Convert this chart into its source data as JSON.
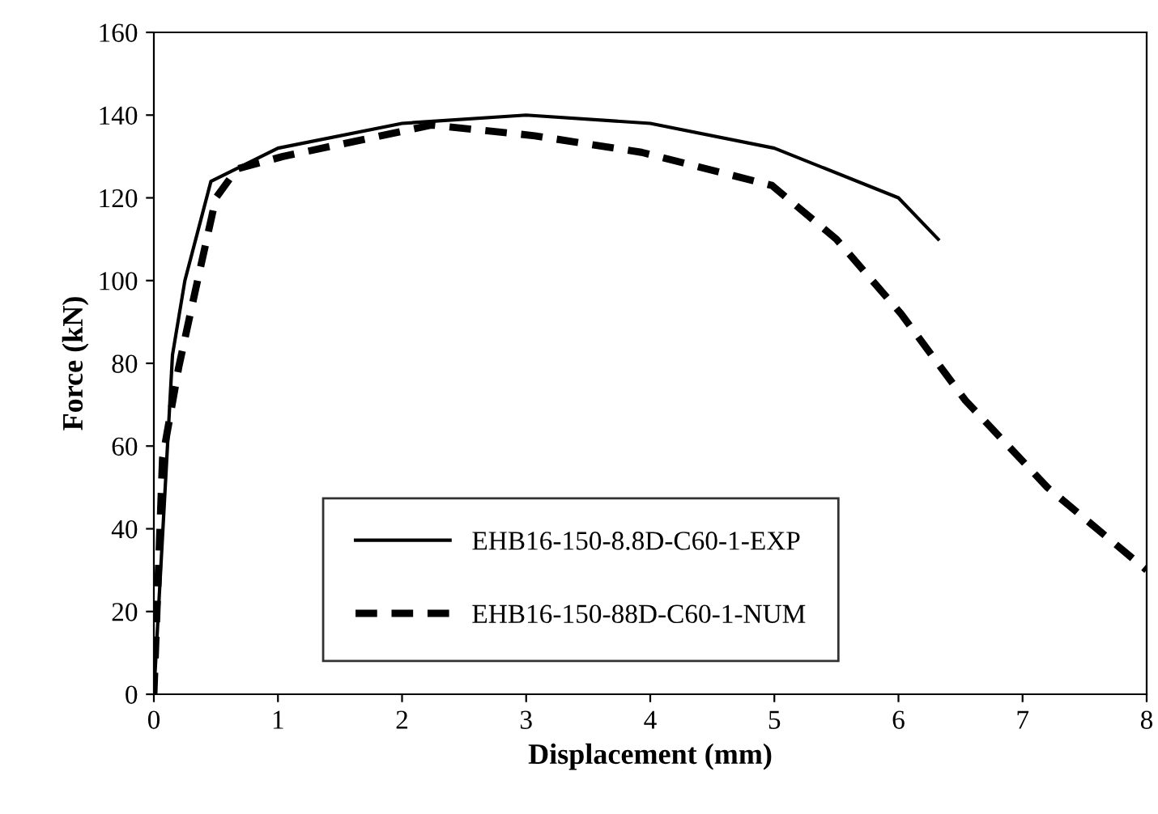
{
  "chart_data": {
    "type": "line",
    "xlabel": "Displacement (mm)",
    "ylabel": "Force (kN)",
    "xlim": [
      0,
      8
    ],
    "ylim": [
      0,
      160
    ],
    "xticks": [
      0,
      1,
      2,
      3,
      4,
      5,
      6,
      7,
      8
    ],
    "yticks": [
      0,
      20,
      40,
      60,
      80,
      100,
      120,
      140,
      160
    ],
    "grid": false,
    "legend": "bottom",
    "marker": "none",
    "series": [
      {
        "name": "EHB16-150-8.8D-C60-1-EXP",
        "color": "#000000",
        "line_style": "solid",
        "x": [
          0,
          0.15,
          0.25,
          0.46,
          1.0,
          2.0,
          3.0,
          4.0,
          5.0,
          6.0,
          6.32
        ],
        "values": [
          0,
          82,
          100,
          124,
          132,
          138,
          140,
          138,
          132,
          120,
          110
        ]
      },
      {
        "name": "EHB16-150-88D-C60-1-NUM",
        "color": "#000000",
        "line_style": "dashed",
        "x": [
          0,
          0.07,
          0.2,
          0.33,
          0.5,
          0.67,
          1.04,
          2.24,
          3.07,
          3.93,
          4.98,
          5.5,
          6.02,
          6.54,
          7.2,
          8.0
        ],
        "values": [
          0,
          57,
          79,
          97,
          120,
          127,
          130,
          137.6,
          135,
          131,
          123,
          110,
          92,
          71,
          50,
          30
        ]
      }
    ]
  }
}
